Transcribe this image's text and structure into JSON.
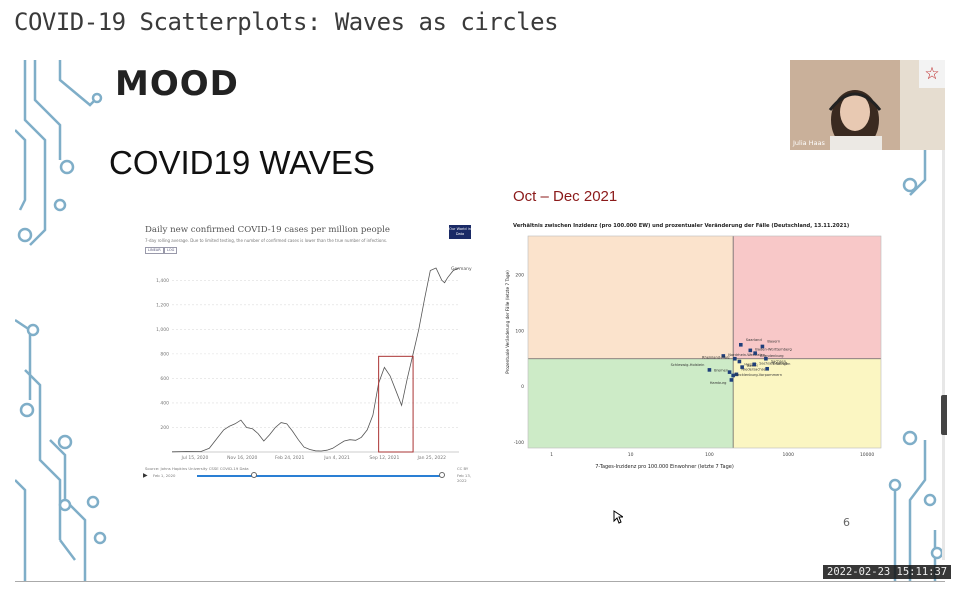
{
  "page_title": "COVID-19 Scatterplots: Waves as circles",
  "slide": {
    "logo_text": "MOOD",
    "heading": "COVID19 WAVES",
    "scatter_heading": "Oct – Dec 2021",
    "slide_number": "6"
  },
  "owid_chart": {
    "title": "Daily new confirmed COVID-19 cases per million people",
    "subtitle": "7-day rolling average. Due to limited testing, the number of confirmed cases is lower than the true number of infections.",
    "btn_linear": "LINEAR",
    "btn_log": "LOG",
    "logo_text": "Our World in Data",
    "series_label": "Germany",
    "source": "Source: Johns Hopkins University CSSE COVID-19 Data",
    "cc": "CC BY",
    "slider_start": "Feb 1, 2020",
    "slider_end": "Feb 13, 2022"
  },
  "chart_data": [
    {
      "type": "line",
      "title": "Daily new confirmed COVID-19 cases per million people",
      "xlabel": "",
      "ylabel": "",
      "x_ticks": [
        "Jul 15, 2020",
        "Nov 16, 2020",
        "Feb 24, 2021",
        "Jun 4, 2021",
        "Sep 12, 2021",
        "Jan 25, 2022"
      ],
      "y_ticks": [
        200,
        400,
        600,
        800,
        1000,
        1200,
        1400
      ],
      "ylim": [
        0,
        1500
      ],
      "series": [
        {
          "name": "Germany",
          "x": [
            0,
            0.05,
            0.1,
            0.13,
            0.16,
            0.18,
            0.2,
            0.22,
            0.24,
            0.26,
            0.28,
            0.3,
            0.32,
            0.34,
            0.36,
            0.38,
            0.4,
            0.42,
            0.44,
            0.46,
            0.48,
            0.5,
            0.52,
            0.54,
            0.56,
            0.58,
            0.6,
            0.62,
            0.64,
            0.66,
            0.68,
            0.7,
            0.72,
            0.74,
            0.76,
            0.78,
            0.8,
            0.82,
            0.84,
            0.86,
            0.88,
            0.9,
            0.92,
            0.93,
            0.94,
            0.95,
            0.96,
            0.97,
            0.98,
            0.99,
            1.0
          ],
          "values": [
            2,
            4,
            3,
            30,
            120,
            180,
            210,
            230,
            260,
            200,
            190,
            150,
            90,
            140,
            200,
            240,
            230,
            170,
            100,
            40,
            20,
            10,
            8,
            15,
            30,
            60,
            90,
            100,
            95,
            120,
            180,
            300,
            560,
            690,
            620,
            500,
            380,
            600,
            800,
            1000,
            1250,
            1480,
            1500,
            1450,
            1400,
            1380,
            1420,
            1450,
            1480,
            1490,
            1500
          ]
        }
      ]
    },
    {
      "type": "scatter",
      "title": "Verhältnis zwischen Inzidenz (pro 100.000 EW) und prozentualer Veränderung der Fälle (Deutschland, 13.11.2021)",
      "xlabel": "7-Tages-Inzidenz pro 100.000 Einwohner (letzte 7 Tage)",
      "ylabel": "Prozentuale Veränderung der Fälle (letzte 7 Tage)",
      "x_scale": "log",
      "x_ticks": [
        1,
        10,
        100,
        1000,
        10000
      ],
      "y_ticks": [
        -100,
        0,
        100,
        200
      ],
      "xlim": [
        0.5,
        15000
      ],
      "ylim": [
        -110,
        270
      ],
      "points": [
        {
          "label": "Schleswig-Holstein",
          "x": 100,
          "y": 30
        },
        {
          "label": "Nordrhein-Westfalen",
          "x": 150,
          "y": 55
        },
        {
          "label": "Hamburg",
          "x": 190,
          "y": 12
        },
        {
          "label": "Niedersachsen",
          "x": 220,
          "y": 22
        },
        {
          "label": "Rheinland-Pfalz",
          "x": 210,
          "y": 50
        },
        {
          "label": "Hessen",
          "x": 240,
          "y": 45
        },
        {
          "label": "Saarland",
          "x": 250,
          "y": 75
        },
        {
          "label": "Baden-Württemberg",
          "x": 330,
          "y": 65
        },
        {
          "label": "Brandenburg",
          "x": 380,
          "y": 60
        },
        {
          "label": "Bayern",
          "x": 470,
          "y": 72
        },
        {
          "label": "Berlin",
          "x": 260,
          "y": 35
        },
        {
          "label": "Mecklenburg-Vorpommern",
          "x": 180,
          "y": 26
        },
        {
          "label": "Bremen",
          "x": 200,
          "y": 20
        },
        {
          "label": "Sachsen-Anhalt",
          "x": 370,
          "y": 40
        },
        {
          "label": "Sachsen",
          "x": 520,
          "y": 50
        },
        {
          "label": "Thüringen",
          "x": 540,
          "y": 32
        }
      ]
    }
  ],
  "scatter_chart": {
    "title": "Verhältnis zwischen Inzidenz (pro 100.000 EW) und prozentualer Veränderung der Fälle (Deutschland, 13.11.2021)",
    "xlabel": "7-Tages-Inzidenz pro 100.000 Einwohner (letzte 7 Tage)",
    "ylabel": "Prozentuale Veränderung der Fälle (letzte 7 Tage)",
    "point_labels": [
      "Schleswig-Holstein",
      "Nordrhein-Westfalen",
      "Saarland",
      "Rheinland-Pfalz",
      "Baden-Württemberg",
      "Brandenburg",
      "Bayern",
      "Sachsen",
      "Thüringen",
      "Berlin",
      "Mecklenburg-Vorpommern",
      "Bremen",
      "Niedersachsen",
      "Hamburg",
      "Sachsen-Anhalt",
      "Hessen"
    ]
  },
  "webcam": {
    "name": "Julia Haas",
    "star": "☆"
  },
  "timestamp": "2022-02-23  15:11:37",
  "colors": {
    "accent_red": "#8b1a1a",
    "quad_orange": "#fbe3cc",
    "quad_pink": "#f8c8c8",
    "quad_green": "#cdebc7",
    "quad_yellow": "#fbf6c2",
    "circuit_blue": "#7faec8"
  }
}
